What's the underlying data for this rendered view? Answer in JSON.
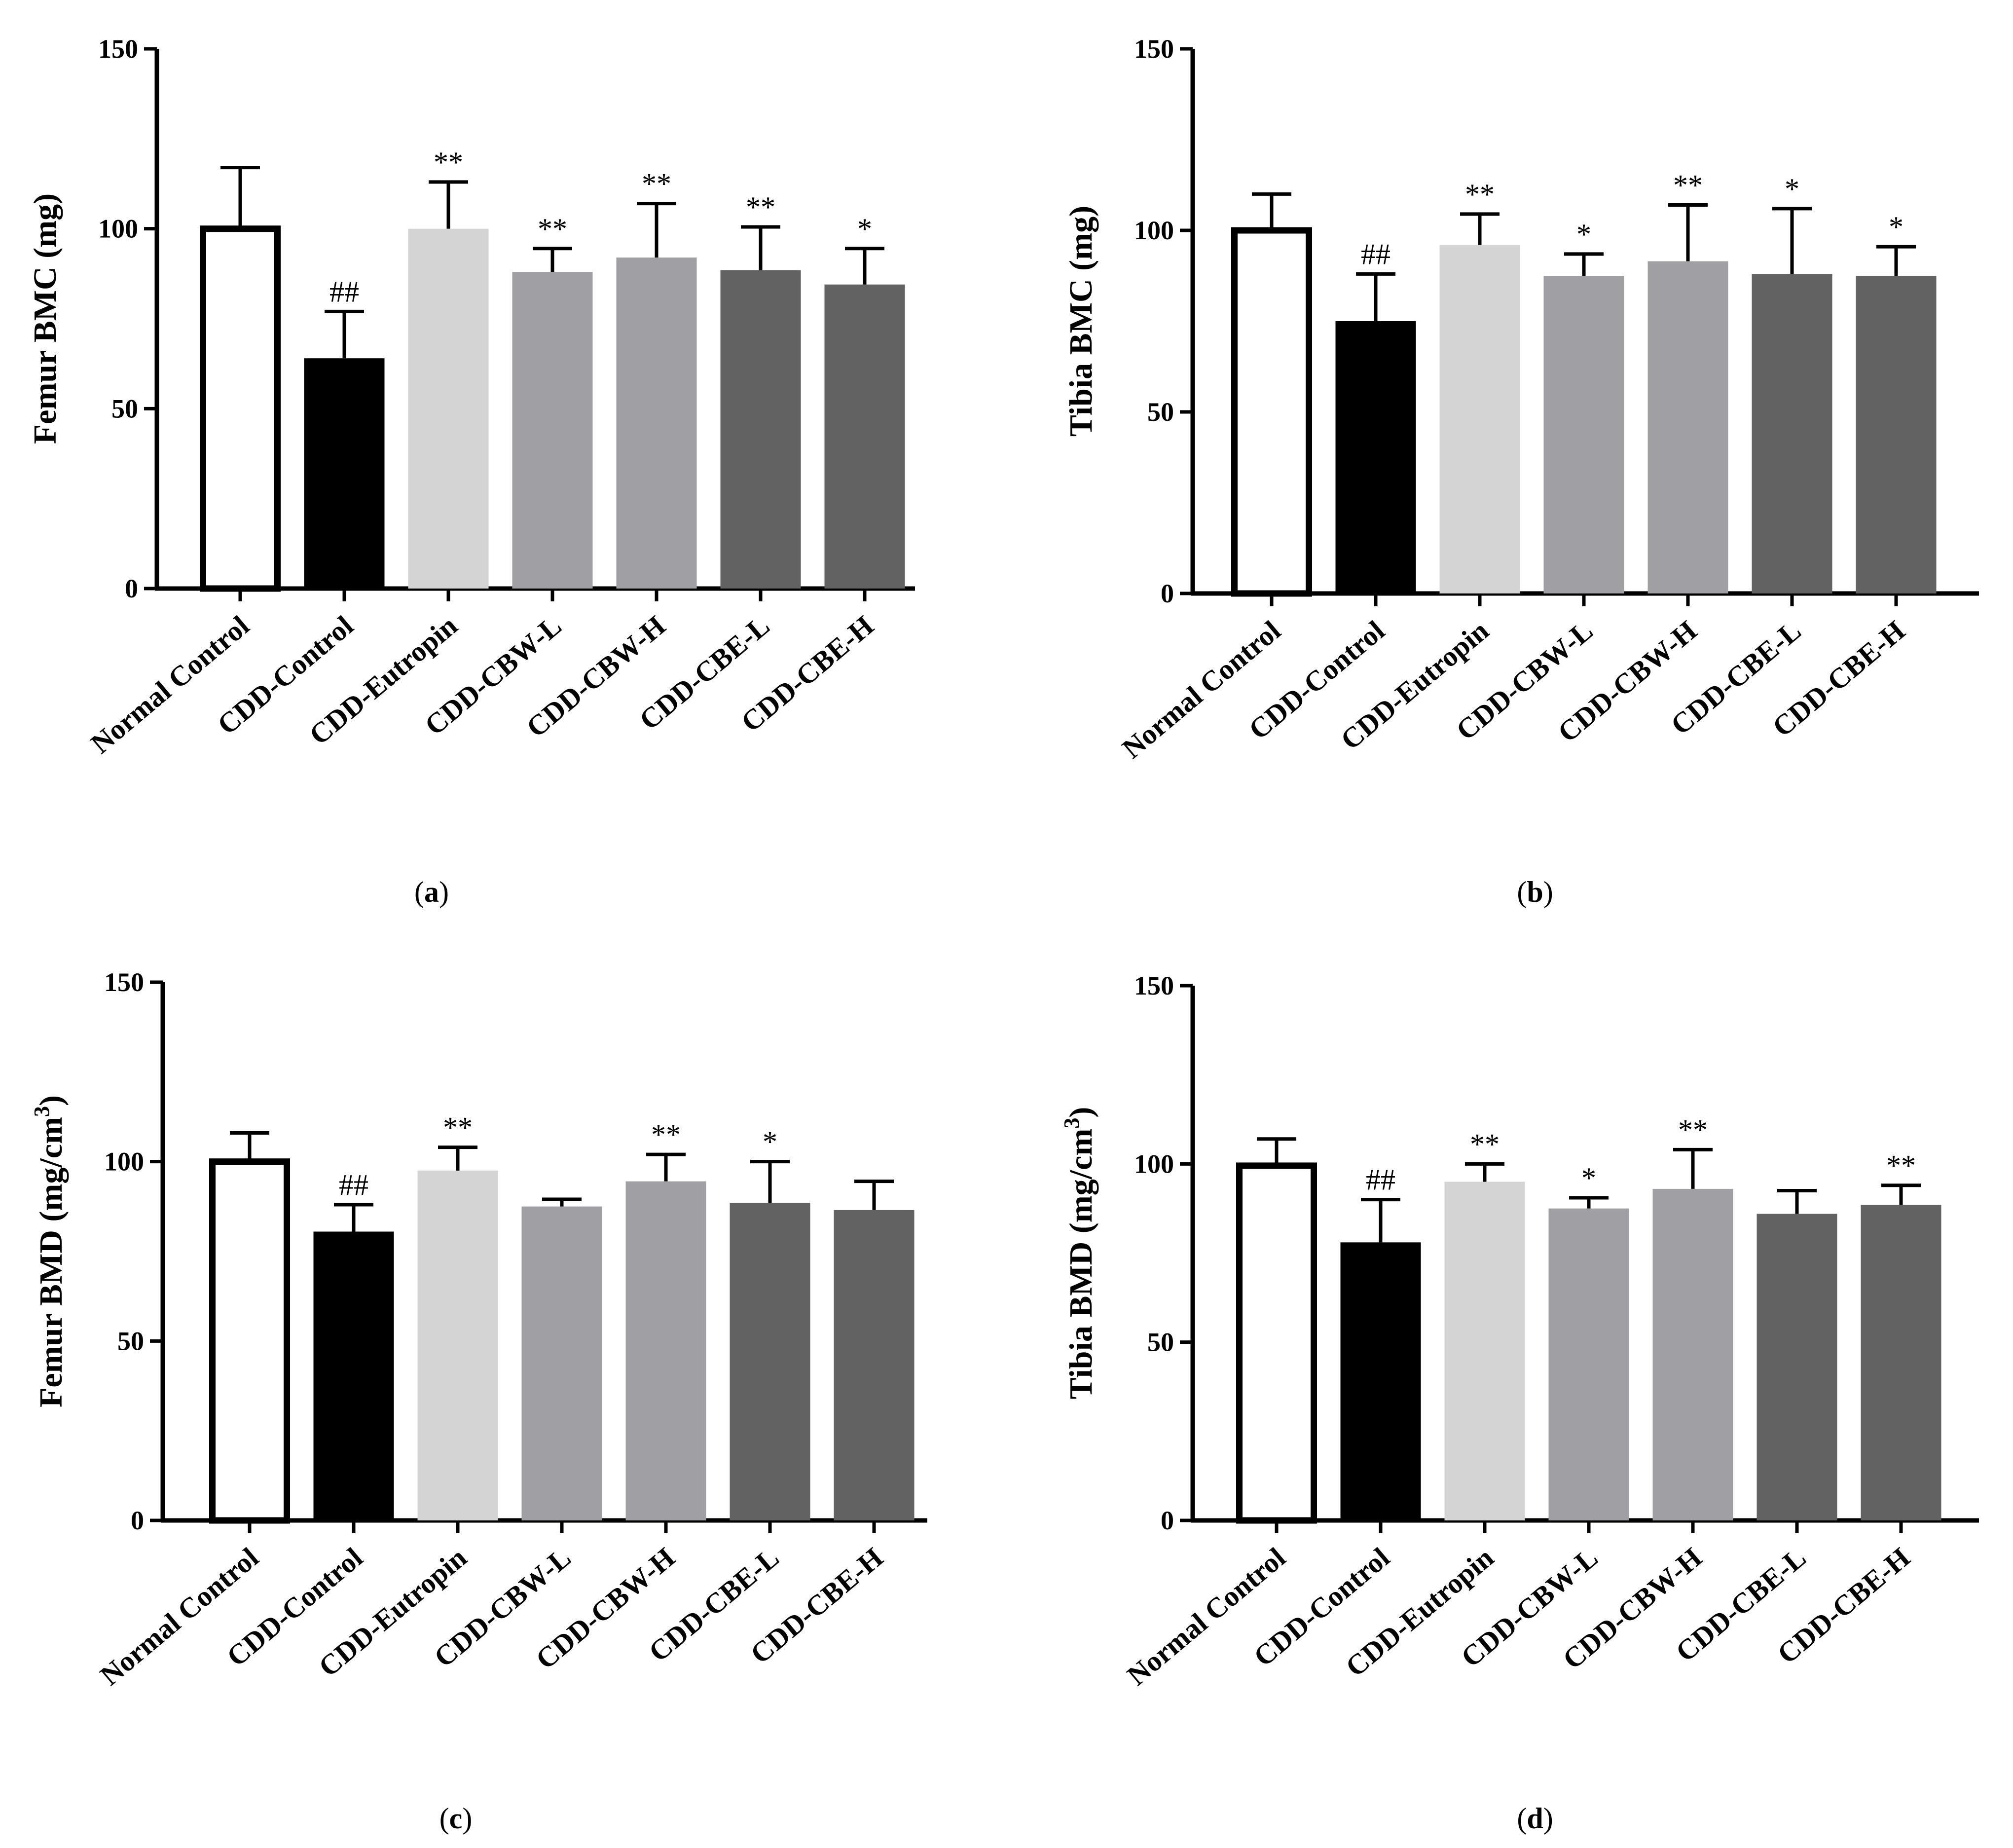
{
  "figure": {
    "colors": {
      "normal_control": "#ffffff",
      "cdd_control": "#000000",
      "cdd_eutropin": "#d4d4d4",
      "cdd_cbw": "#a0a0a4",
      "cdd_cbe": "#626262",
      "axis": "#000000"
    }
  },
  "chart_data": [
    {
      "id": "a",
      "type": "bar",
      "caption_letter": "a",
      "caption_open": "(",
      "caption_close": ")",
      "ylabel": "Femur BMC  (mg)",
      "ylabel_sup": "",
      "ylabel_end": "",
      "ylim": [
        0,
        150
      ],
      "yticks": [
        "0",
        "50",
        "100",
        "150"
      ],
      "categories": [
        "Normal Control",
        "CDD-Control",
        "CDD-Eutropin",
        "CDD-CBW-L",
        "CDD-CBW-H",
        "CDD-CBE-L",
        "CDD-CBE-H"
      ],
      "values": [
        100,
        64,
        100,
        88,
        92,
        88.5,
        84.5
      ],
      "errors": [
        17,
        13,
        13,
        6.5,
        15,
        12,
        10
      ],
      "annotations": [
        "",
        "##",
        "**",
        "**",
        "**",
        "**",
        "*"
      ]
    },
    {
      "id": "b",
      "type": "bar",
      "caption_letter": "b",
      "caption_open": "(",
      "caption_close": ")",
      "ylabel": "Tibia BMC  (mg)",
      "ylabel_sup": "",
      "ylabel_end": "",
      "ylim": [
        0,
        150
      ],
      "yticks": [
        "0",
        "50",
        "100",
        "150"
      ],
      "categories": [
        "Normal Control",
        "CDD-Control",
        "CDD-Eutropin",
        "CDD-CBW-L",
        "CDD-CBW-H",
        "CDD-CBE-L",
        "CDD-CBE-H"
      ],
      "values": [
        100,
        75,
        96,
        87.5,
        91.5,
        88,
        87.5
      ],
      "errors": [
        10,
        13,
        8.5,
        6,
        15.5,
        18,
        8
      ],
      "annotations": [
        "",
        "##",
        "**",
        "*",
        "**",
        "*",
        "*"
      ]
    },
    {
      "id": "c",
      "type": "bar",
      "caption_letter": "c",
      "caption_open": "(",
      "caption_close": ")",
      "ylabel": "Femur BMD  (mg/cm",
      "ylabel_sup": "3",
      "ylabel_end": ")",
      "ylim": [
        0,
        150
      ],
      "yticks": [
        "0",
        "50",
        "100",
        "150"
      ],
      "categories": [
        "Normal Control",
        "CDD-Control",
        "CDD-Eutropin",
        "CDD-CBW-L",
        "CDD-CBW-H",
        "CDD-CBE-L",
        "CDD-CBE-H"
      ],
      "values": [
        100,
        80.5,
        97.5,
        87.5,
        94.5,
        88.5,
        86.5
      ],
      "errors": [
        8,
        7.5,
        6.5,
        2,
        7.5,
        11.5,
        8
      ],
      "annotations": [
        "",
        "##",
        "**",
        "",
        "**",
        "*",
        ""
      ]
    },
    {
      "id": "d",
      "type": "bar",
      "caption_letter": "d",
      "caption_open": "(",
      "caption_close": ")",
      "ylabel": "Tibia BMD  (mg/cm",
      "ylabel_sup": "3",
      "ylabel_end": ")",
      "ylim": [
        0,
        150
      ],
      "yticks": [
        "0",
        "50",
        "100",
        "150"
      ],
      "categories": [
        "Normal Control",
        "CDD-Control",
        "CDD-Eutropin",
        "CDD-CBW-L",
        "CDD-CBW-H",
        "CDD-CBE-L",
        "CDD-CBE-H"
      ],
      "values": [
        99.5,
        78,
        95,
        87.5,
        93,
        86,
        88.5
      ],
      "errors": [
        7.5,
        12,
        5,
        3,
        11,
        6.5,
        5.5
      ],
      "annotations": [
        "",
        "##",
        "**",
        "*",
        "**",
        "",
        "**"
      ]
    }
  ]
}
